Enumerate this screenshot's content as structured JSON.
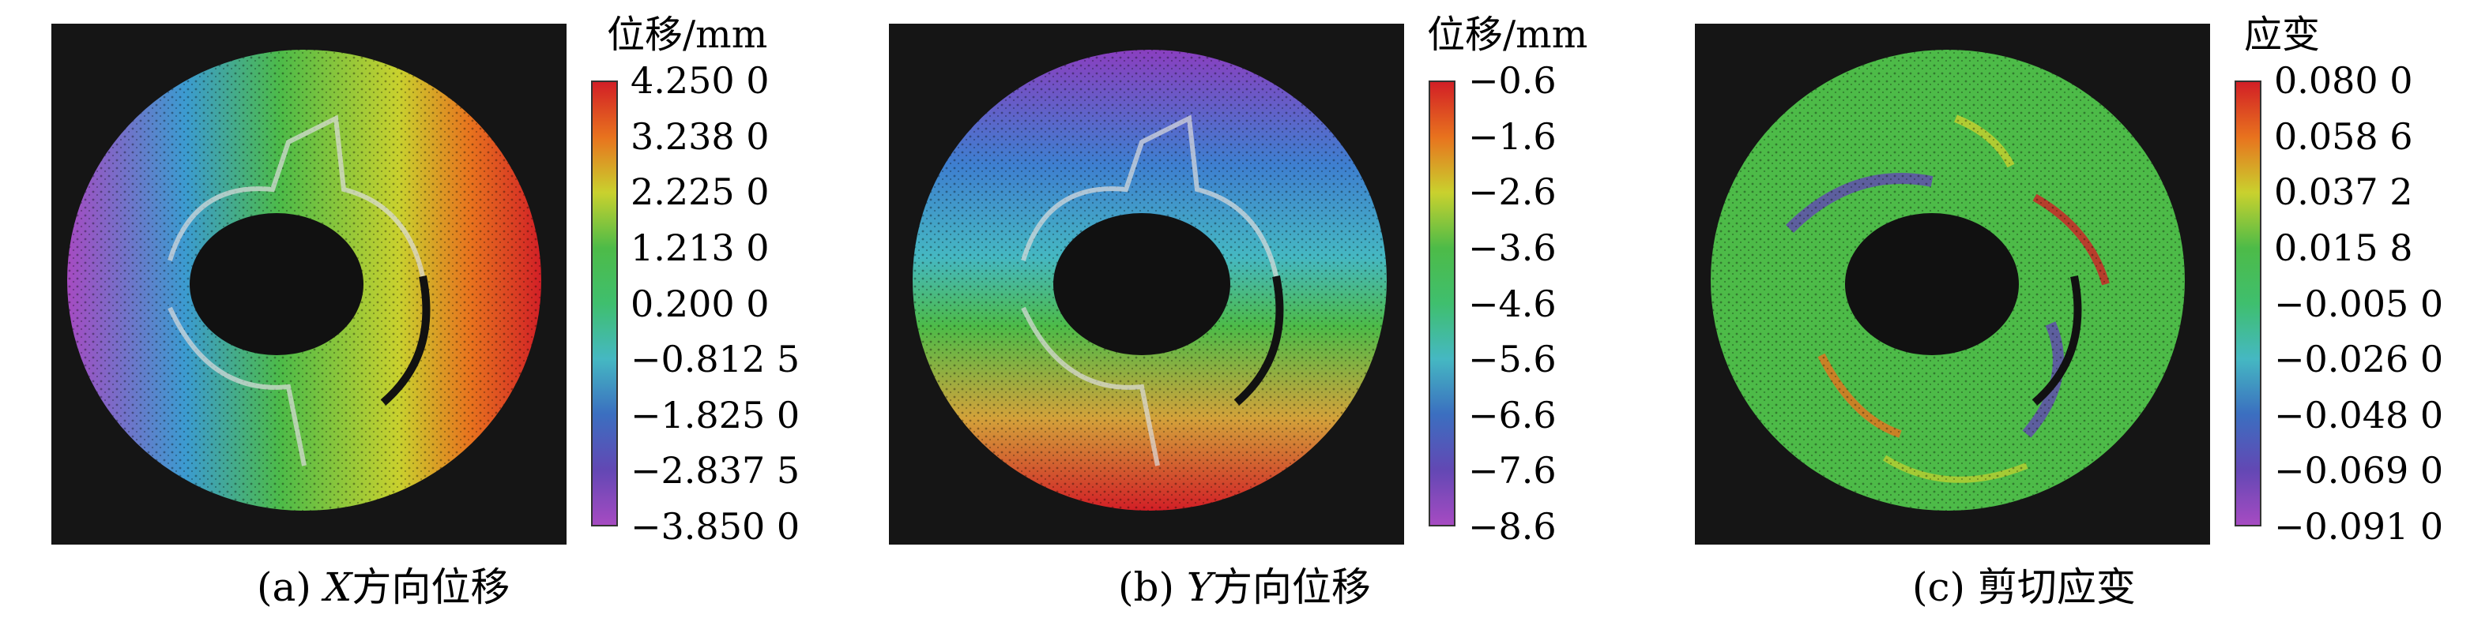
{
  "panels": [
    {
      "id": "a",
      "unit": "位移/mm",
      "ticks": [
        "4.250 0",
        "3.238 0",
        "2.225 0",
        "1.213 0",
        "0.200 0",
        "−0.812 5",
        "−1.825 0",
        "−2.837 5",
        "−3.850 0"
      ],
      "caption_prefix": "(a) ",
      "caption_axis": "X",
      "caption_suffix": "方向位移",
      "field": "x-gradient"
    },
    {
      "id": "b",
      "unit": "位移/mm",
      "ticks": [
        "−0.6",
        "−1.6",
        "−2.6",
        "−3.6",
        "−4.6",
        "−5.6",
        "−6.6",
        "−7.6",
        "−8.6"
      ],
      "caption_prefix": "(b) ",
      "caption_axis": "Y",
      "caption_suffix": "方向位移",
      "field": "y-gradient"
    },
    {
      "id": "c",
      "unit": "应变",
      "ticks": [
        "0.080 0",
        "0.058 6",
        "0.037 2",
        "0.015 8",
        "−0.005 0",
        "−0.026 0",
        "−0.048 0",
        "−0.069 0",
        "−0.091 0"
      ],
      "caption_prefix": "(c) ",
      "caption_axis": "",
      "caption_suffix": "剪切应变",
      "field": "shear"
    }
  ],
  "colormap": [
    "#d21f26",
    "#e8731e",
    "#c9d12e",
    "#4dbb48",
    "#3fbf6e",
    "#45b8c2",
    "#3b6fc0",
    "#6248b4",
    "#a64bc2"
  ]
}
